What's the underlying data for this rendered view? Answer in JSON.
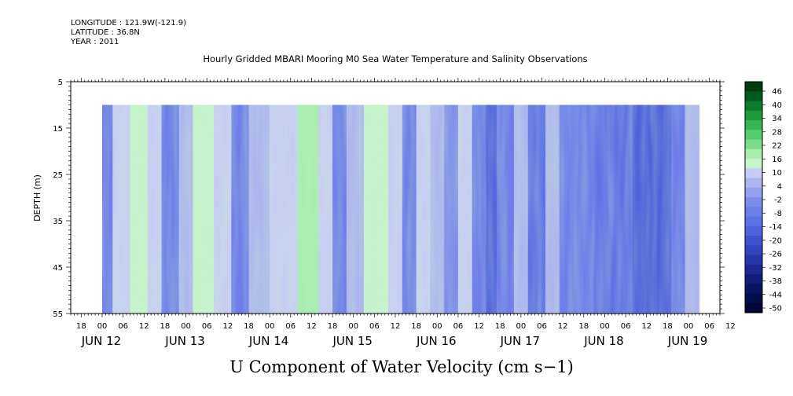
{
  "header": {
    "longitude": "LONGITUDE : 121.9W(-121.9)",
    "latitude": "LATITUDE : 36.8N",
    "year": "YEAR : 2011"
  },
  "chart_data": {
    "type": "heatmap",
    "title": "Hourly Gridded MBARI Mooring M0 Sea Water Temperature and Salinity Observations",
    "variable_label": "U Component of Water Velocity (cm s−1)",
    "ylabel": "DEPTH (m)",
    "x_unit": "hours since Jun 12 00:00",
    "xlim": [
      -9,
      177
    ],
    "ylim": [
      5,
      55
    ],
    "y_inverted": true,
    "y_ticks": [
      5,
      15,
      25,
      35,
      45,
      55
    ],
    "x_hour_tick_labels": [
      "18",
      "00",
      "06",
      "12",
      "18",
      "00",
      "06",
      "12",
      "18",
      "00",
      "06",
      "12",
      "18",
      "00",
      "06",
      "12",
      "18",
      "00",
      "06",
      "12",
      "18",
      "00",
      "06",
      "12",
      "18",
      "00",
      "06",
      "12",
      "18",
      "00",
      "06",
      "12"
    ],
    "x_day_labels": [
      "JUN 12",
      "JUN 13",
      "JUN 14",
      "JUN 15",
      "JUN 16",
      "JUN 17",
      "JUN 18",
      "JUN 19"
    ],
    "data_extent": {
      "x_hours": [
        0,
        171
      ],
      "depth_m": [
        10,
        55
      ]
    },
    "colorbar": {
      "labels": [
        "46",
        "40",
        "34",
        "28",
        "22",
        "16",
        "10",
        "4",
        "-2",
        "-8",
        "-14",
        "-20",
        "-26",
        "-32",
        "-38",
        "-44",
        "-50"
      ],
      "colors": [
        "#003a10",
        "#005a1e",
        "#0b7a2c",
        "#1e9a3c",
        "#35b552",
        "#55cc6e",
        "#7cdc8e",
        "#a8ecb0",
        "#c5f3cb",
        "#c8ccf4",
        "#aeb4f0",
        "#97a0ee",
        "#808ceb",
        "#6d7ee8",
        "#5f71e6",
        "#4f62dd",
        "#3f52d0",
        "#3343c0",
        "#2735aa",
        "#1b2893",
        "#121d7a",
        "#0a1462",
        "#050c4a",
        "#020535"
      ]
    },
    "field_profile": [
      {
        "hour": 0,
        "value": -6
      },
      {
        "hour": 3,
        "value": 12
      },
      {
        "hour": 8,
        "value": 16
      },
      {
        "hour": 13,
        "value": 10
      },
      {
        "hour": 17,
        "value": -4
      },
      {
        "hour": 22,
        "value": 8
      },
      {
        "hour": 26,
        "value": 14
      },
      {
        "hour": 32,
        "value": 10
      },
      {
        "hour": 37,
        "value": -6
      },
      {
        "hour": 42,
        "value": 6
      },
      {
        "hour": 48,
        "value": 12
      },
      {
        "hour": 56,
        "value": 22
      },
      {
        "hour": 62,
        "value": 10
      },
      {
        "hour": 66,
        "value": -6
      },
      {
        "hour": 70,
        "value": 8
      },
      {
        "hour": 75,
        "value": 14
      },
      {
        "hour": 82,
        "value": 12
      },
      {
        "hour": 86,
        "value": -4
      },
      {
        "hour": 90,
        "value": 10
      },
      {
        "hour": 94,
        "value": 8
      },
      {
        "hour": 98,
        "value": -2
      },
      {
        "hour": 102,
        "value": 12
      },
      {
        "hour": 106,
        "value": -6
      },
      {
        "hour": 110,
        "value": -12
      },
      {
        "hour": 113,
        "value": -6
      },
      {
        "hour": 118,
        "value": 6
      },
      {
        "hour": 122,
        "value": -8
      },
      {
        "hour": 127,
        "value": 8
      },
      {
        "hour": 131,
        "value": -4
      },
      {
        "hour": 135,
        "value": -6
      },
      {
        "hour": 141,
        "value": -10
      },
      {
        "hour": 152,
        "value": -12
      },
      {
        "hour": 158,
        "value": -14
      },
      {
        "hour": 163,
        "value": -4
      },
      {
        "hour": 167,
        "value": 8
      },
      {
        "hour": 171,
        "value": 4
      }
    ]
  }
}
